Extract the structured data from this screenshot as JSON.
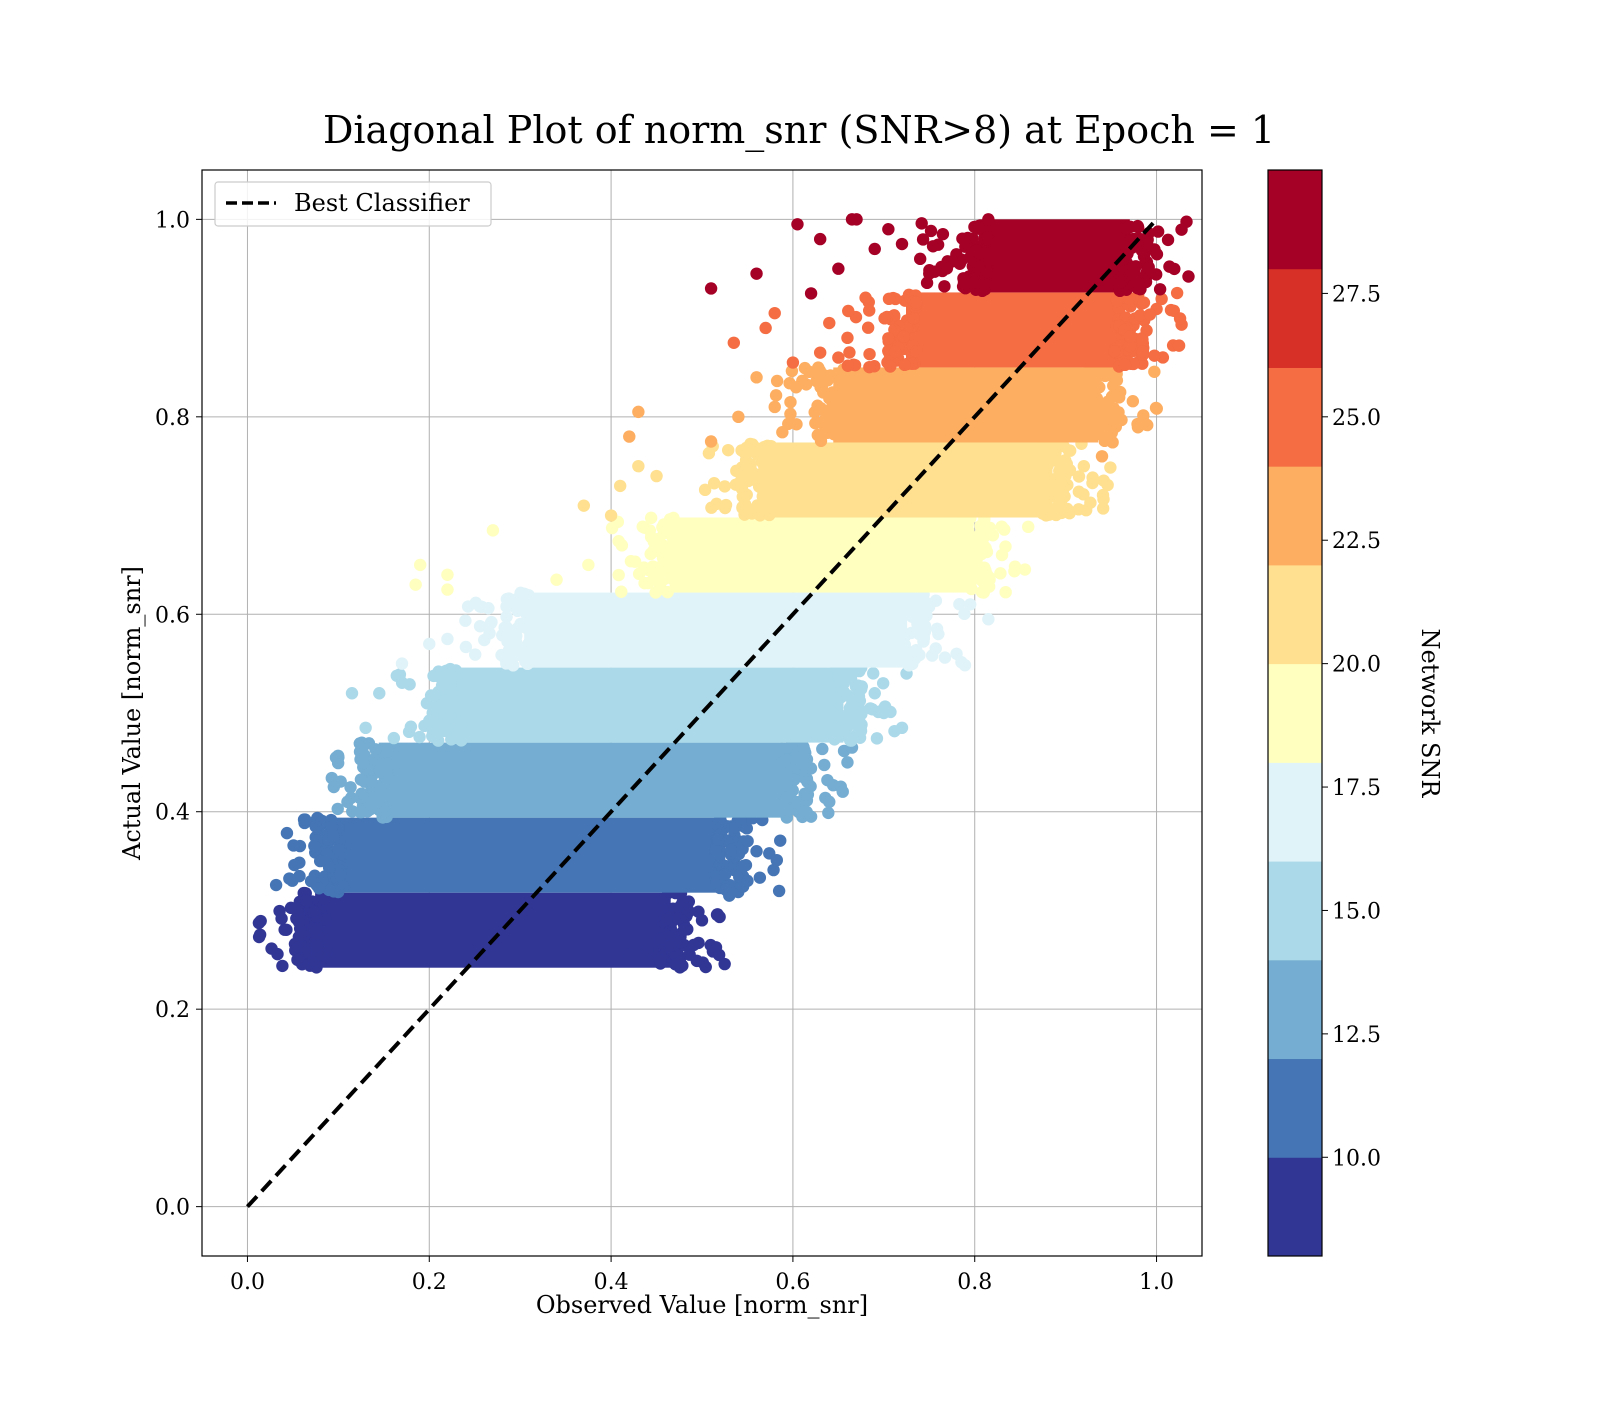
{
  "chart_data": {
    "type": "scatter",
    "title": "Diagonal Plot of norm_snr (SNR>8) at Epoch = 1",
    "xlabel": "Observed Value [norm_snr]",
    "ylabel": "Actual Value [norm_snr]",
    "xlim": [
      -0.05,
      1.05
    ],
    "ylim": [
      -0.05,
      1.05
    ],
    "xticks": [
      0.0,
      0.2,
      0.4,
      0.6,
      0.8,
      1.0
    ],
    "yticks": [
      0.0,
      0.2,
      0.4,
      0.6,
      0.8,
      1.0
    ],
    "xtick_labels": [
      "0.0",
      "0.2",
      "0.4",
      "0.6",
      "0.8",
      "1.0"
    ],
    "ytick_labels": [
      "0.0",
      "0.2",
      "0.4",
      "0.6",
      "0.8",
      "1.0"
    ],
    "grid": true,
    "legend": {
      "position": "top-left",
      "entries": [
        "Best Classifier"
      ]
    },
    "reference_line": {
      "name": "Best Classifier",
      "style": "dashed",
      "color": "#000000",
      "x": [
        0.0,
        1.0
      ],
      "y": [
        0.0,
        1.0
      ]
    },
    "colorbar": {
      "label": "Network SNR",
      "range": [
        8.0,
        30.0
      ],
      "ticks": [
        10.0,
        12.5,
        15.0,
        17.5,
        20.0,
        22.5,
        25.0,
        27.5
      ],
      "tick_labels": [
        "10.0",
        "12.5",
        "15.0",
        "17.5",
        "20.0",
        "22.5",
        "25.0",
        "27.5"
      ],
      "colors": [
        "#313695",
        "#4575b4",
        "#74add1",
        "#abd9e9",
        "#e0f3f8",
        "#ffffbf",
        "#fee090",
        "#fdae61",
        "#f46d43",
        "#d73027",
        "#a50026"
      ]
    },
    "bands": [
      {
        "y_range": [
          0.242,
          0.318
        ],
        "x_range": [
          0.07,
          0.47
        ],
        "color": "#313695",
        "outliers": [
          [
            0.055,
            0.25
          ],
          [
            0.06,
            0.275
          ],
          [
            0.065,
            0.31
          ],
          [
            0.44,
            0.26
          ],
          [
            0.48,
            0.28
          ],
          [
            0.5,
            0.29
          ],
          [
            0.42,
            0.255
          ]
        ]
      },
      {
        "y_range": [
          0.318,
          0.394
        ],
        "x_range": [
          0.09,
          0.53
        ],
        "color": "#4575b4",
        "outliers": [
          [
            0.075,
            0.385
          ],
          [
            0.08,
            0.35
          ],
          [
            0.095,
            0.375
          ],
          [
            0.55,
            0.33
          ],
          [
            0.53,
            0.315
          ],
          [
            0.56,
            0.36
          ],
          [
            0.545,
            0.345
          ]
        ]
      },
      {
        "y_range": [
          0.394,
          0.47
        ],
        "x_range": [
          0.14,
          0.6
        ],
        "color": "#74add1",
        "outliers": [
          [
            0.1,
            0.455
          ],
          [
            0.095,
            0.425
          ],
          [
            0.11,
            0.41
          ],
          [
            0.64,
            0.41
          ],
          [
            0.66,
            0.45
          ],
          [
            0.62,
            0.395
          ],
          [
            0.665,
            0.465
          ]
        ]
      },
      {
        "y_range": [
          0.47,
          0.546
        ],
        "x_range": [
          0.22,
          0.66
        ],
        "color": "#abd9e9",
        "outliers": [
          [
            0.115,
            0.52
          ],
          [
            0.13,
            0.485
          ],
          [
            0.145,
            0.52
          ],
          [
            0.72,
            0.485
          ],
          [
            0.7,
            0.5
          ],
          [
            0.725,
            0.54
          ],
          [
            0.69,
            0.52
          ]
        ]
      },
      {
        "y_range": [
          0.546,
          0.622
        ],
        "x_range": [
          0.3,
          0.73
        ],
        "color": "#e0f3f8",
        "outliers": [
          [
            0.17,
            0.55
          ],
          [
            0.2,
            0.57
          ],
          [
            0.22,
            0.575
          ],
          [
            0.78,
            0.56
          ],
          [
            0.815,
            0.595
          ],
          [
            0.76,
            0.58
          ],
          [
            0.795,
            0.61
          ]
        ]
      },
      {
        "y_range": [
          0.622,
          0.698
        ],
        "x_range": [
          0.46,
          0.8
        ],
        "color": "#ffffbf",
        "outliers": [
          [
            0.19,
            0.65
          ],
          [
            0.185,
            0.63
          ],
          [
            0.22,
            0.64
          ],
          [
            0.22,
            0.625
          ],
          [
            0.27,
            0.685
          ],
          [
            0.34,
            0.635
          ],
          [
            0.375,
            0.65
          ],
          [
            0.82,
            0.68
          ],
          [
            0.83,
            0.66
          ],
          [
            0.805,
            0.68
          ],
          [
            0.795,
            0.63
          ]
        ]
      },
      {
        "y_range": [
          0.698,
          0.774
        ],
        "x_range": [
          0.56,
          0.89
        ],
        "color": "#fee090",
        "outliers": [
          [
            0.37,
            0.71
          ],
          [
            0.4,
            0.7
          ],
          [
            0.41,
            0.73
          ],
          [
            0.43,
            0.75
          ],
          [
            0.45,
            0.74
          ],
          [
            0.92,
            0.75
          ],
          [
            0.9,
            0.73
          ],
          [
            0.885,
            0.705
          ],
          [
            0.88,
            0.72
          ]
        ]
      },
      {
        "y_range": [
          0.774,
          0.85
        ],
        "x_range": [
          0.64,
          0.94
        ],
        "color": "#fdae61",
        "outliers": [
          [
            0.43,
            0.805
          ],
          [
            0.42,
            0.78
          ],
          [
            0.51,
            0.775
          ],
          [
            0.54,
            0.8
          ],
          [
            0.58,
            0.81
          ],
          [
            0.56,
            0.84
          ],
          [
            0.94,
            0.76
          ],
          [
            0.96,
            0.825
          ],
          [
            0.955,
            0.8
          ]
        ]
      },
      {
        "y_range": [
          0.85,
          0.926
        ],
        "x_range": [
          0.72,
          0.97
        ],
        "color": "#f46d43",
        "outliers": [
          [
            0.535,
            0.875
          ],
          [
            0.57,
            0.89
          ],
          [
            0.58,
            0.905
          ],
          [
            0.6,
            0.855
          ],
          [
            0.63,
            0.865
          ],
          [
            0.64,
            0.895
          ],
          [
            0.65,
            0.86
          ],
          [
            0.66,
            0.88
          ],
          [
            0.97,
            0.92
          ]
        ]
      },
      {
        "y_range": [
          0.926,
          1.0
        ],
        "x_range": [
          0.8,
          0.975
        ],
        "color": "#a50026",
        "outliers": [
          [
            0.51,
            0.93
          ],
          [
            0.56,
            0.945
          ],
          [
            0.605,
            0.995
          ],
          [
            0.62,
            0.925
          ],
          [
            0.63,
            0.98
          ],
          [
            0.65,
            0.95
          ],
          [
            0.665,
            1.0
          ],
          [
            0.67,
            1.0
          ],
          [
            0.705,
            0.99
          ],
          [
            0.69,
            0.97
          ],
          [
            0.72,
            0.975
          ],
          [
            0.74,
            0.96
          ],
          [
            0.75,
            0.945
          ],
          [
            0.765,
            0.985
          ],
          [
            0.79,
            0.975
          ],
          [
            0.815,
            1.0
          ]
        ]
      }
    ]
  }
}
